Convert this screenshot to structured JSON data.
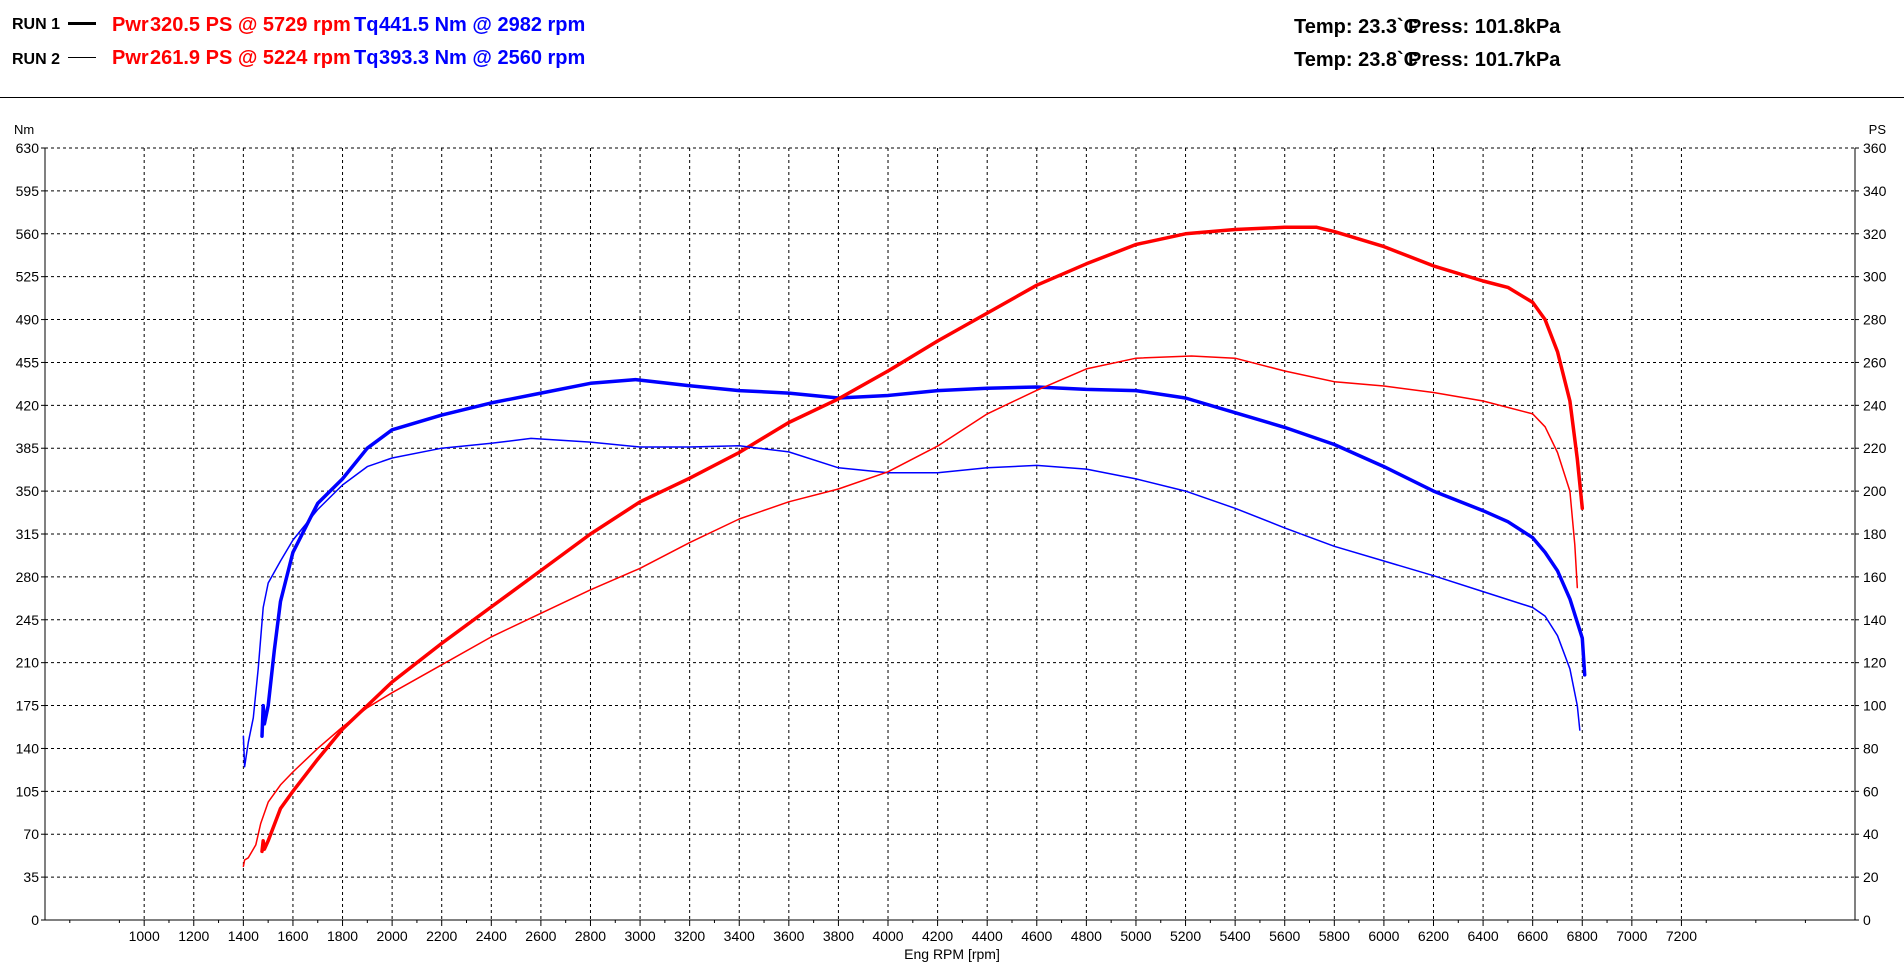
{
  "header": {
    "runs": [
      {
        "label": "RUN 1",
        "power": {
          "prefix": "Pwr",
          "text": "320.5 PS @ 5729 rpm"
        },
        "torque": {
          "prefix": "Tq",
          "text": "441.5 Nm @ 2982 rpm"
        },
        "temp": "Temp: 23.3`C",
        "press": "Press: 101.8kPa"
      },
      {
        "label": "RUN 2",
        "power": {
          "prefix": "Pwr",
          "text": "261.9 PS @ 5224 rpm"
        },
        "torque": {
          "prefix": "Tq",
          "text": "393.3 Nm @ 2560 rpm"
        },
        "temp": "Temp: 23.8`C",
        "press": "Press: 101.7kPa"
      }
    ]
  },
  "chart_data": {
    "type": "line",
    "xlabel": "Eng RPM [rpm]",
    "ylabel_left": "Nm",
    "ylabel_right": "PS",
    "xlim": [
      600,
      7900
    ],
    "ylim_left": [
      0,
      630
    ],
    "ylim_right": [
      0,
      360
    ],
    "x_ticks": [
      1000,
      1200,
      1400,
      1600,
      1800,
      2000,
      2200,
      2400,
      2600,
      2800,
      3000,
      3200,
      3400,
      3600,
      3800,
      4000,
      4200,
      4400,
      4600,
      4800,
      5000,
      5200,
      5400,
      5600,
      5800,
      6000,
      6200,
      6400,
      6600,
      6800,
      7000,
      7200
    ],
    "y_ticks_left": [
      0,
      35,
      70,
      105,
      140,
      175,
      210,
      245,
      280,
      315,
      350,
      385,
      420,
      455,
      490,
      525,
      560,
      595,
      630
    ],
    "y_ticks_right": [
      0,
      20,
      40,
      60,
      80,
      100,
      120,
      140,
      160,
      180,
      200,
      220,
      240,
      260,
      280,
      300,
      320,
      340,
      360
    ],
    "grid": true,
    "colors": {
      "power": "#ff0000",
      "torque": "#0000ff"
    },
    "series": [
      {
        "run": "RUN 1",
        "quantity": "torque",
        "axis": "left",
        "weight": "thick",
        "points": [
          [
            1475,
            150
          ],
          [
            1480,
            175
          ],
          [
            1485,
            160
          ],
          [
            1500,
            175
          ],
          [
            1525,
            220
          ],
          [
            1550,
            260
          ],
          [
            1600,
            300
          ],
          [
            1700,
            340
          ],
          [
            1800,
            360
          ],
          [
            1900,
            385
          ],
          [
            2000,
            400
          ],
          [
            2200,
            412
          ],
          [
            2400,
            422
          ],
          [
            2600,
            430
          ],
          [
            2800,
            438
          ],
          [
            2982,
            441
          ],
          [
            3200,
            436
          ],
          [
            3400,
            432
          ],
          [
            3600,
            430
          ],
          [
            3800,
            426
          ],
          [
            4000,
            428
          ],
          [
            4200,
            432
          ],
          [
            4400,
            434
          ],
          [
            4600,
            435
          ],
          [
            4800,
            433
          ],
          [
            5000,
            432
          ],
          [
            5200,
            426
          ],
          [
            5400,
            414
          ],
          [
            5600,
            402
          ],
          [
            5800,
            388
          ],
          [
            6000,
            370
          ],
          [
            6200,
            350
          ],
          [
            6400,
            334
          ],
          [
            6500,
            325
          ],
          [
            6600,
            312
          ],
          [
            6650,
            300
          ],
          [
            6700,
            285
          ],
          [
            6750,
            262
          ],
          [
            6800,
            230
          ],
          [
            6810,
            200
          ]
        ]
      },
      {
        "run": "RUN 1",
        "quantity": "power",
        "axis": "right",
        "weight": "thick",
        "points": [
          [
            1475,
            32
          ],
          [
            1480,
            37
          ],
          [
            1485,
            33
          ],
          [
            1500,
            37
          ],
          [
            1550,
            52
          ],
          [
            1600,
            60
          ],
          [
            1700,
            75
          ],
          [
            1800,
            89
          ],
          [
            1900,
            100
          ],
          [
            2000,
            111
          ],
          [
            2200,
            129
          ],
          [
            2400,
            146
          ],
          [
            2600,
            163
          ],
          [
            2800,
            180
          ],
          [
            3000,
            195
          ],
          [
            3200,
            206
          ],
          [
            3400,
            218
          ],
          [
            3600,
            232
          ],
          [
            3800,
            243
          ],
          [
            4000,
            256
          ],
          [
            4200,
            270
          ],
          [
            4400,
            283
          ],
          [
            4600,
            296
          ],
          [
            4800,
            306
          ],
          [
            5000,
            315
          ],
          [
            5200,
            320
          ],
          [
            5400,
            322
          ],
          [
            5600,
            323
          ],
          [
            5729,
            323
          ],
          [
            5800,
            321
          ],
          [
            6000,
            314
          ],
          [
            6200,
            305
          ],
          [
            6400,
            298
          ],
          [
            6500,
            295
          ],
          [
            6600,
            288
          ],
          [
            6650,
            280
          ],
          [
            6700,
            265
          ],
          [
            6750,
            242
          ],
          [
            6780,
            215
          ],
          [
            6800,
            192
          ]
        ]
      },
      {
        "run": "RUN 2",
        "quantity": "torque",
        "axis": "left",
        "weight": "thin",
        "points": [
          [
            1400,
            150
          ],
          [
            1405,
            125
          ],
          [
            1420,
            145
          ],
          [
            1440,
            165
          ],
          [
            1460,
            205
          ],
          [
            1480,
            255
          ],
          [
            1500,
            275
          ],
          [
            1550,
            293
          ],
          [
            1600,
            310
          ],
          [
            1700,
            335
          ],
          [
            1800,
            355
          ],
          [
            1900,
            370
          ],
          [
            2000,
            377
          ],
          [
            2200,
            385
          ],
          [
            2400,
            389
          ],
          [
            2560,
            393
          ],
          [
            2800,
            390
          ],
          [
            3000,
            386
          ],
          [
            3200,
            386
          ],
          [
            3400,
            387
          ],
          [
            3600,
            382
          ],
          [
            3800,
            369
          ],
          [
            4000,
            365
          ],
          [
            4200,
            365
          ],
          [
            4400,
            369
          ],
          [
            4600,
            371
          ],
          [
            4800,
            368
          ],
          [
            5000,
            360
          ],
          [
            5200,
            350
          ],
          [
            5400,
            336
          ],
          [
            5600,
            320
          ],
          [
            5800,
            305
          ],
          [
            6000,
            293
          ],
          [
            6200,
            281
          ],
          [
            6400,
            268
          ],
          [
            6600,
            255
          ],
          [
            6650,
            248
          ],
          [
            6700,
            232
          ],
          [
            6750,
            205
          ],
          [
            6780,
            175
          ],
          [
            6790,
            155
          ]
        ]
      },
      {
        "run": "RUN 2",
        "quantity": "power",
        "axis": "right",
        "weight": "thin",
        "points": [
          [
            1400,
            25
          ],
          [
            1405,
            28
          ],
          [
            1420,
            29
          ],
          [
            1450,
            35
          ],
          [
            1470,
            45
          ],
          [
            1500,
            55
          ],
          [
            1550,
            63
          ],
          [
            1600,
            69
          ],
          [
            1700,
            80
          ],
          [
            1800,
            90
          ],
          [
            1900,
            99
          ],
          [
            2000,
            106
          ],
          [
            2200,
            119
          ],
          [
            2400,
            132
          ],
          [
            2600,
            143
          ],
          [
            2800,
            154
          ],
          [
            3000,
            164
          ],
          [
            3200,
            176
          ],
          [
            3400,
            187
          ],
          [
            3600,
            195
          ],
          [
            3800,
            201
          ],
          [
            4000,
            209
          ],
          [
            4200,
            221
          ],
          [
            4400,
            236
          ],
          [
            4600,
            247
          ],
          [
            4800,
            257
          ],
          [
            5000,
            262
          ],
          [
            5224,
            263
          ],
          [
            5400,
            262
          ],
          [
            5600,
            256
          ],
          [
            5800,
            251
          ],
          [
            6000,
            249
          ],
          [
            6200,
            246
          ],
          [
            6400,
            242
          ],
          [
            6600,
            236
          ],
          [
            6650,
            230
          ],
          [
            6700,
            218
          ],
          [
            6750,
            200
          ],
          [
            6770,
            175
          ],
          [
            6780,
            155
          ]
        ]
      }
    ]
  }
}
